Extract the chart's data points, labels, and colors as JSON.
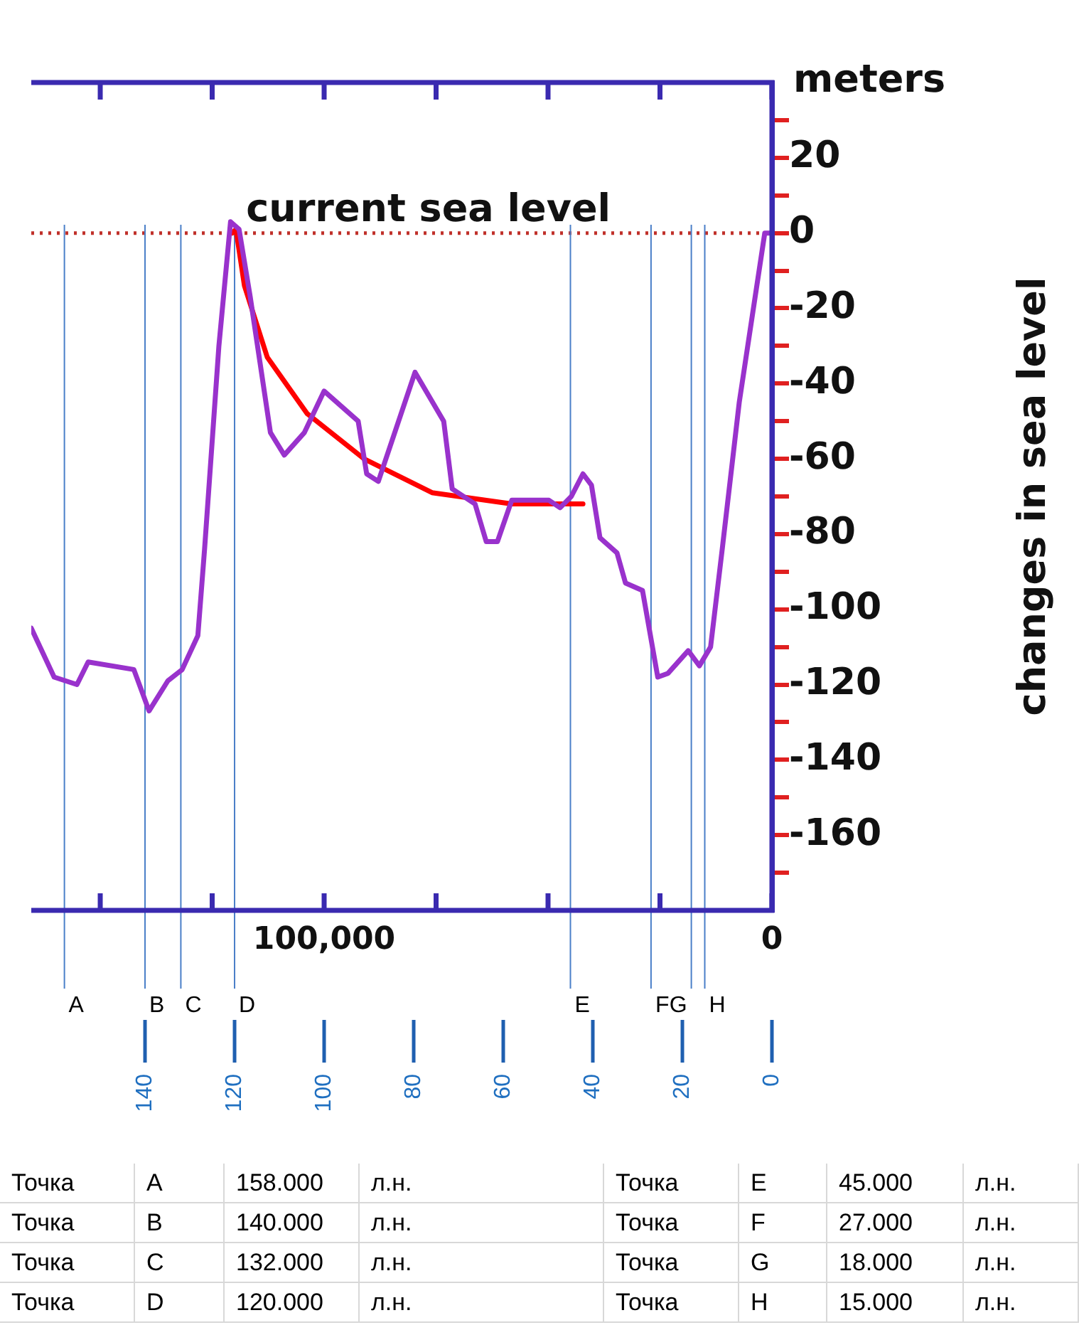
{
  "chart_data": {
    "type": "line",
    "ylabel": "changes in sea level",
    "xlim": [
      165.4,
      0
    ],
    "xticks": [
      {
        "value": 150,
        "label": null
      },
      {
        "value": 125,
        "label": null
      },
      {
        "value": 100,
        "label": "100,000"
      },
      {
        "value": 75,
        "label": null
      },
      {
        "value": 50,
        "label": null
      },
      {
        "value": 25,
        "label": null
      },
      0
    ],
    "x2lim": [
      165.4,
      0
    ],
    "x2ticks": [
      140,
      120,
      100,
      80,
      60,
      40,
      20,
      0
    ],
    "ylim": [
      -180,
      40
    ],
    "yticks": [
      {
        "value": -170,
        "label": null
      },
      -160,
      {
        "value": -150,
        "label": null
      },
      -140,
      {
        "value": -130,
        "label": null
      },
      -120,
      {
        "value": -110,
        "label": null
      },
      -100,
      {
        "value": -90,
        "label": null
      },
      -80,
      {
        "value": -70,
        "label": null
      },
      -60,
      {
        "value": -50,
        "label": null
      },
      -40,
      {
        "value": -30,
        "label": null
      },
      -20,
      {
        "value": -10,
        "label": null
      },
      0,
      {
        "value": 10,
        "label": null
      },
      20,
      {
        "value": 30,
        "label": null
      }
    ],
    "grid": false,
    "legend": false,
    "marker": "none",
    "line_style": "solid",
    "series": [
      {
        "color": "#9932cc",
        "x": [
          165.4,
          160.3,
          155.2,
          152.7,
          142.5,
          139.1,
          134.9,
          131.7,
          128.2,
          126.7,
          123.5,
          120.9,
          119,
          116.5,
          112,
          108.9,
          104.4,
          100,
          92.4,
          90.5,
          87.9,
          79.7,
          73.3,
          71.4,
          66.3,
          63.8,
          61.3,
          58.1,
          49.8,
          47.3,
          44.8,
          42.2,
          40.3,
          38.4,
          34.6,
          32.7,
          28.9,
          25.5,
          23.2,
          18.7,
          16.2,
          13.7,
          11.1,
          7.3,
          1.6,
          0
        ],
        "values": [
          -105,
          -118,
          -120,
          -114,
          -116,
          -127,
          -119,
          -116,
          -107,
          -84,
          -30,
          3,
          1,
          -17,
          -53,
          -59,
          -53,
          -42,
          -50,
          -64,
          -66,
          -37,
          -50,
          -68,
          -72,
          -82,
          -82,
          -71,
          -71,
          -73,
          -70,
          -64,
          -67,
          -81,
          -85,
          -93,
          -95,
          -118,
          -117,
          -111,
          -115,
          -110,
          -84,
          -45,
          0,
          0
        ]
      },
      {
        "type": "line",
        "color": "#ff0000",
        "x": [
          120.5,
          119.7,
          117.8,
          112.7,
          103.8,
          91.1,
          75.9,
          58.1,
          42.2
        ],
        "values": [
          0,
          1,
          -14,
          -33,
          -48,
          -60,
          -69,
          -72,
          -72
        ]
      }
    ],
    "ref_lines": [
      {
        "axis": "y",
        "value": 0,
        "label": "current sea level",
        "color": "#c0302a",
        "line_style": "dotted"
      },
      {
        "axis": "x",
        "value": 158,
        "label": "A",
        "color": "#4a7fc8"
      },
      {
        "axis": "x",
        "value": 140,
        "label": "B",
        "color": "#4a7fc8"
      },
      {
        "axis": "x",
        "value": 132,
        "label": "C",
        "color": "#4a7fc8"
      },
      {
        "axis": "x",
        "value": 120,
        "label": "D",
        "color": "#4a7fc8"
      },
      {
        "axis": "x",
        "value": 45,
        "label": "E",
        "color": "#4a7fc8"
      },
      {
        "axis": "x",
        "value": 27,
        "label": "F",
        "color": "#4a7fc8"
      },
      {
        "axis": "x",
        "value": 18,
        "label": "G",
        "color": "#4a7fc8"
      },
      {
        "axis": "x",
        "value": 15,
        "label": "H",
        "color": "#4a7fc8"
      }
    ],
    "annotations": [
      "meters",
      "Точка A 158.000 л.н.",
      "Точка E 45.000 л.н.",
      "Точка B 140.000 л.н.",
      "Точка F 27.000 л.н.",
      "Точка C 132.000 л.н.",
      "Точка G 18.000 л.н.",
      "Точка D 120.000 л.н.",
      "Точка H 15.000 л.н."
    ]
  }
}
